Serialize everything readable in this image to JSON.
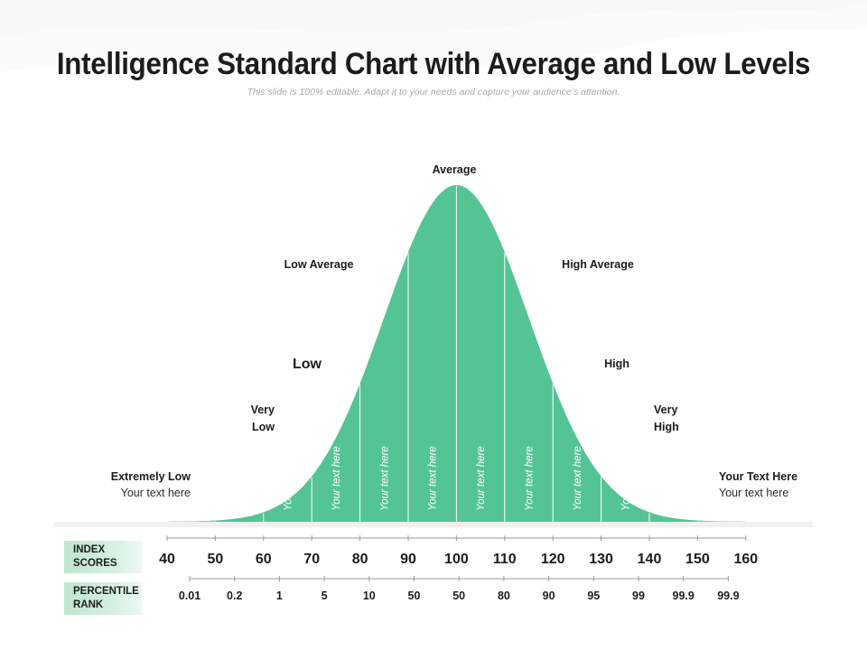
{
  "title": "Intelligence Standard Chart with Average and Low Levels",
  "subtitle": "This slide is 100% editable. Adapt it to your needs and capture your audience’s attention.",
  "tags": {
    "index_scores": "INDEX SCORES",
    "percentile_rank": "PERCENTILE RANK"
  },
  "colors": {
    "curve_fill": "#55c495",
    "curve_fill_light": "#7fd3ad",
    "divider": "#ffffff",
    "axis": "#9a9a9a",
    "label": "#1c1c1c"
  },
  "chart_data": {
    "type": "area",
    "title": "Intelligence Standard Chart with Average and Low Levels",
    "xlabel": "INDEX SCORES",
    "secondary_xlabel": "PERCENTILE RANK",
    "distribution": "normal",
    "mean": 100,
    "std_dev": 15,
    "xlim": [
      40,
      160
    ],
    "index_scores": [
      40,
      50,
      60,
      70,
      80,
      90,
      100,
      110,
      120,
      130,
      140,
      150,
      160
    ],
    "percentile_ranks": [
      "0.01",
      "0.2",
      "1",
      "5",
      "10",
      "50",
      "50",
      "80",
      "90",
      "95",
      "99",
      "99.9",
      "99.9"
    ],
    "band_text": [
      {
        "from": 50,
        "to": 60,
        "text": "Your text here"
      },
      {
        "from": 60,
        "to": 70,
        "text": "Your text here"
      },
      {
        "from": 70,
        "to": 80,
        "text": "Your text here"
      },
      {
        "from": 80,
        "to": 90,
        "text": "Your text here"
      },
      {
        "from": 90,
        "to": 100,
        "text": "Your text here"
      },
      {
        "from": 100,
        "to": 110,
        "text": "Your text here"
      },
      {
        "from": 110,
        "to": 120,
        "text": "Your text here"
      },
      {
        "from": 120,
        "to": 130,
        "text": "Your text here"
      },
      {
        "from": 130,
        "to": 140,
        "text": "Your text here"
      },
      {
        "from": 140,
        "to": 150,
        "text": "Your text here"
      }
    ],
    "category_labels": [
      {
        "id": "extremely-low",
        "lines": [
          "Extremely Low"
        ],
        "sub": "Your text here",
        "side": "left"
      },
      {
        "id": "very-low",
        "lines": [
          "Very",
          "Low"
        ],
        "side": "left"
      },
      {
        "id": "low",
        "lines": [
          "Low"
        ],
        "side": "left"
      },
      {
        "id": "low-average",
        "lines": [
          "Low Average"
        ],
        "side": "left"
      },
      {
        "id": "average",
        "lines": [
          "Average"
        ],
        "side": "center"
      },
      {
        "id": "high-average",
        "lines": [
          "High Average"
        ],
        "side": "right"
      },
      {
        "id": "high",
        "lines": [
          "High"
        ],
        "side": "right"
      },
      {
        "id": "very-high",
        "lines": [
          "Very",
          "High"
        ],
        "side": "right"
      },
      {
        "id": "extremely-high",
        "lines": [
          "Your Text Here"
        ],
        "sub": "Your text here",
        "side": "right"
      }
    ]
  }
}
